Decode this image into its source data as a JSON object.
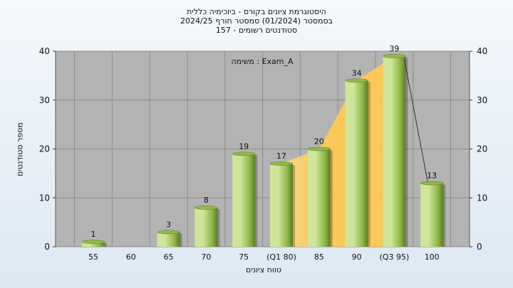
{
  "chart_data": {
    "type": "bar",
    "title": [
      "היסטוגרמת ציונים בקורס - ביוכימיה כללית",
      "בסמסטר  (01/2024)  סמסטר חורף 2024/25",
      "סטודנטים רשומים - 157"
    ],
    "annotation": "משימה : Exam_A",
    "xlabel": "טווח ציונים",
    "ylabel": "מספר סטודנטים",
    "categories": [
      "55",
      "60",
      "65",
      "70",
      "75",
      "(Q1 80)",
      "85",
      "90",
      "(Q3 95)",
      "100"
    ],
    "values": [
      1,
      0,
      3,
      8,
      19,
      17,
      20,
      34,
      39,
      13
    ],
    "data_labels": [
      "1",
      "",
      "3",
      "8",
      "19",
      "17",
      "20",
      "34",
      "39",
      "13"
    ],
    "ylim": [
      0,
      40
    ],
    "yticks": [
      0,
      10,
      20,
      30,
      40
    ],
    "grid": true,
    "iqr_band": {
      "from": "(Q1 80)",
      "to": "(Q3 95)",
      "color": "#ffc955"
    },
    "colors": {
      "plot_background": "#b3b3b3",
      "bar_light": "#cfe69a",
      "bar_mid": "#8fb84a",
      "bar_dark": "#5a7d22"
    }
  }
}
